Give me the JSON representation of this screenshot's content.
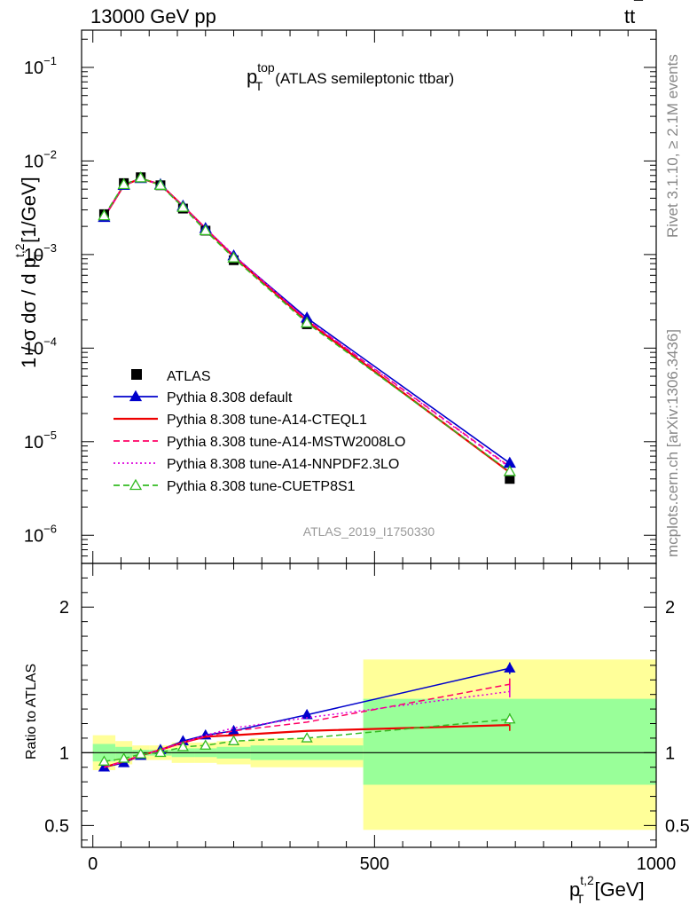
{
  "header": {
    "left": "13000 GeV pp",
    "right_main": "tt",
    "right_bar": "¯",
    "right_note": "Rivet 3.1.10, ≥ 2.1M events",
    "right_note2": "mcplots.cern.ch [arXiv:1306.3436]"
  },
  "chart_data": [
    {
      "type": "line",
      "title": {
        "p": "p",
        "sup": "top",
        "sub": "T",
        "rest": "(ATLAS semileptonic ttbar)"
      },
      "ylabel": {
        "main": "1 / σ dσ / d p",
        "sup": "t,2",
        "sub": "T",
        "unit": "[1/GeV]"
      },
      "yscale": "log",
      "ylim": [
        5e-07,
        0.25
      ],
      "xlim": [
        -20,
        1000
      ],
      "watermark": "ATLAS_2019_I1750330",
      "yticks": [
        {
          "v": 1e-06,
          "b": "10",
          "e": "−6"
        },
        {
          "v": 1e-05,
          "b": "10",
          "e": "−5"
        },
        {
          "v": 0.0001,
          "b": "10",
          "e": "−4"
        },
        {
          "v": 0.001,
          "b": "10",
          "e": "−3"
        },
        {
          "v": 0.01,
          "b": "10",
          "e": "−2"
        },
        {
          "v": 0.1,
          "b": "10",
          "e": "−1"
        }
      ],
      "x": [
        20,
        55,
        85,
        120,
        160,
        200,
        250,
        380,
        740
      ],
      "data": {
        "name": "ATLAS",
        "values": [
          0.0027,
          0.0058,
          0.0067,
          0.0055,
          0.0031,
          0.0018,
          0.00087,
          0.00018,
          4e-06
        ]
      },
      "legend": {
        "position": "bottom-left"
      },
      "series": [
        {
          "name": "Pythia 8.308 default",
          "color": "#0000cc",
          "dash": "solid",
          "marker": "triangle-filled",
          "values": [
            0.0025,
            0.0055,
            0.0065,
            0.0056,
            0.0033,
            0.0019,
            0.00097,
            0.00021,
            5.9e-06
          ]
        },
        {
          "name": "Pythia 8.308 tune-A14-CTEQL1",
          "color": "#ee0000",
          "dash": "solid",
          "marker": "none",
          "values": [
            0.0025,
            0.0055,
            0.0065,
            0.0056,
            0.0033,
            0.0019,
            0.00095,
            0.000195,
            4.7e-06
          ]
        },
        {
          "name": "Pythia 8.308 tune-A14-MSTW2008LO",
          "color": "#ff0066",
          "dash": "dashed",
          "marker": "none",
          "values": [
            0.0025,
            0.0055,
            0.0065,
            0.0056,
            0.0033,
            0.0019,
            0.00097,
            0.0002,
            5.4e-06
          ]
        },
        {
          "name": "Pythia 8.308 tune-A14-NNPDF2.3LO",
          "color": "#dd00dd",
          "dash": "dotted",
          "marker": "none",
          "values": [
            0.0025,
            0.0055,
            0.0065,
            0.0056,
            0.0033,
            0.0019,
            0.00099,
            0.0002,
            5.3e-06
          ]
        },
        {
          "name": "Pythia 8.308 tune-CUETP8S1",
          "color": "#33bb22",
          "dash": "dashed",
          "marker": "triangle-open",
          "values": [
            0.0026,
            0.0056,
            0.0066,
            0.0055,
            0.0032,
            0.0018,
            0.00092,
            0.000186,
            4.8e-06
          ]
        }
      ]
    },
    {
      "type": "line",
      "ylabel": "Ratio to ATLAS",
      "xlabel": {
        "main": "p",
        "sup": "t,2",
        "sub": "T",
        "unit": "[GeV]"
      },
      "ylim": [
        0.35,
        2.3
      ],
      "xlim": [
        -20,
        1000
      ],
      "xticks": [
        {
          "v": 0,
          "label": "0"
        },
        {
          "v": 500,
          "label": "500"
        },
        {
          "v": 1000,
          "label": "1000"
        }
      ],
      "yticks": [
        {
          "v": 0.5,
          "label": "0.5"
        },
        {
          "v": 1,
          "label": "1"
        },
        {
          "v": 2,
          "label": "2"
        }
      ],
      "bands": [
        {
          "x0": 0,
          "x1": 40,
          "yellow": [
            0.88,
            1.12
          ],
          "green": [
            0.94,
            1.06
          ]
        },
        {
          "x0": 40,
          "x1": 70,
          "yellow": [
            0.92,
            1.08
          ],
          "green": [
            0.96,
            1.04
          ]
        },
        {
          "x0": 70,
          "x1": 100,
          "yellow": [
            0.95,
            1.05
          ],
          "green": [
            0.98,
            1.02
          ]
        },
        {
          "x0": 100,
          "x1": 140,
          "yellow": [
            0.95,
            1.05
          ],
          "green": [
            0.98,
            1.02
          ]
        },
        {
          "x0": 140,
          "x1": 180,
          "yellow": [
            0.93,
            1.07
          ],
          "green": [
            0.97,
            1.03
          ]
        },
        {
          "x0": 180,
          "x1": 220,
          "yellow": [
            0.93,
            1.07
          ],
          "green": [
            0.97,
            1.03
          ]
        },
        {
          "x0": 220,
          "x1": 280,
          "yellow": [
            0.92,
            1.08
          ],
          "green": [
            0.96,
            1.04
          ]
        },
        {
          "x0": 280,
          "x1": 480,
          "yellow": [
            0.9,
            1.1
          ],
          "green": [
            0.95,
            1.05
          ]
        },
        {
          "x0": 480,
          "x1": 1000,
          "yellow": [
            0.47,
            1.64
          ],
          "green": [
            0.78,
            1.37
          ]
        }
      ],
      "ratio_series": [
        {
          "name": "Pythia 8.308 default",
          "values": [
            0.9,
            0.93,
            0.98,
            1.02,
            1.08,
            1.12,
            1.15,
            1.26,
            1.58
          ]
        },
        {
          "name": "Pythia 8.308 tune-A14-CTEQL1",
          "values": [
            0.9,
            0.94,
            0.98,
            1.02,
            1.07,
            1.11,
            1.12,
            1.15,
            1.19
          ]
        },
        {
          "name": "Pythia 8.308 tune-A14-MSTW2008LO",
          "values": [
            0.9,
            0.94,
            0.98,
            1.02,
            1.07,
            1.11,
            1.15,
            1.21,
            1.47
          ]
        },
        {
          "name": "Pythia 8.308 tune-A14-NNPDF2.3LO",
          "values": [
            0.9,
            0.94,
            0.98,
            1.02,
            1.07,
            1.12,
            1.17,
            1.24,
            1.42
          ]
        },
        {
          "name": "Pythia 8.308 tune-CUETP8S1",
          "values": [
            0.94,
            0.96,
            0.99,
            1.0,
            1.04,
            1.05,
            1.08,
            1.1,
            1.23
          ]
        }
      ]
    }
  ]
}
